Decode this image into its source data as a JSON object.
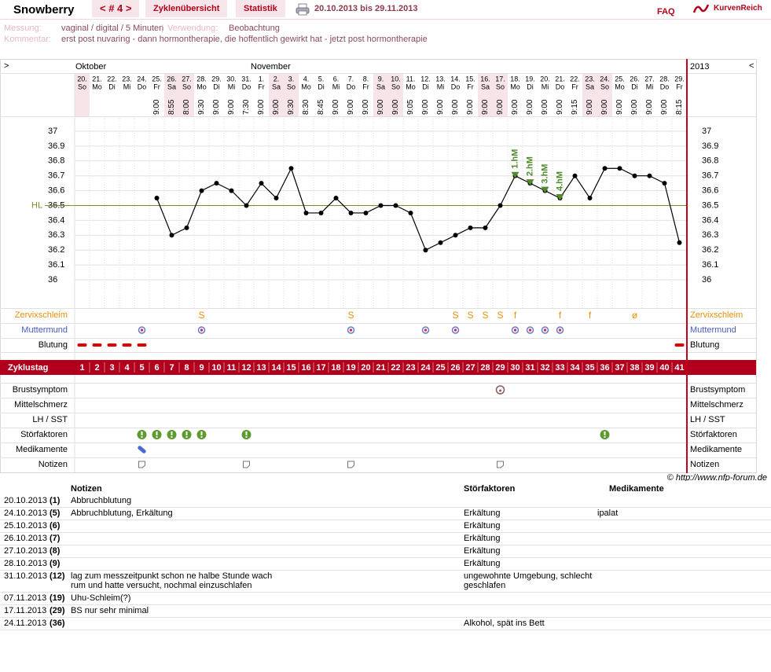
{
  "header": {
    "name": "Snowberry",
    "cycle_nav": "< # 4 >",
    "tabs": [
      "Zyklenübersicht",
      "Statistik"
    ],
    "date_range": "20.10.2013 bis 29.11.2013",
    "faq": "FAQ",
    "logo": "KurvenReich"
  },
  "info": {
    "measurement_label": "Messung:",
    "measurement": "vaginal / digital / 5 Minuten",
    "separator": "|",
    "usage_label": "Verwendung:",
    "usage": "Beobachtung",
    "comment_label": "Kommentar:",
    "comment": "erst post nuvaring - dann hormontherapie, die hoffentlich gewirkt hat - jetzt post hormontherapie"
  },
  "chart_data": {
    "type": "line",
    "nav_left": ">",
    "nav_right": "<",
    "months": [
      "Oktober",
      "November"
    ],
    "year": "2013",
    "categories": [
      "20.",
      "21.",
      "22.",
      "23.",
      "24.",
      "25.",
      "26.",
      "27.",
      "28.",
      "29.",
      "30.",
      "31.",
      "1.",
      "2.",
      "3.",
      "4.",
      "5.",
      "6.",
      "7.",
      "8.",
      "9.",
      "10.",
      "11.",
      "12.",
      "13.",
      "14.",
      "15.",
      "16.",
      "17.",
      "18.",
      "19.",
      "20.",
      "21.",
      "22.",
      "23.",
      "24.",
      "25.",
      "26.",
      "27.",
      "28.",
      "29."
    ],
    "weekdays": [
      "So",
      "Mo",
      "Di",
      "Mi",
      "Do",
      "Fr",
      "Sa",
      "So",
      "Mo",
      "Di",
      "Mi",
      "Do",
      "Fr",
      "Sa",
      "So",
      "Mo",
      "Di",
      "Mi",
      "Do",
      "Fr",
      "Sa",
      "So",
      "Mo",
      "Di",
      "Mi",
      "Do",
      "Fr",
      "Sa",
      "So",
      "Mo",
      "Di",
      "Mi",
      "Do",
      "Fr",
      "Sa",
      "So",
      "Mo",
      "Di",
      "Mi",
      "Do",
      "Fr"
    ],
    "weekend": [
      "Sa",
      "So"
    ],
    "times": [
      null,
      null,
      null,
      null,
      null,
      "9:00",
      "8:55",
      "8:00",
      "9:30",
      "9:00",
      "9:00",
      "7:30",
      "9:00",
      "9:00",
      "9:30",
      "8:30",
      "8:45",
      "9:00",
      "9:00",
      "9:00",
      "9:00",
      "9:00",
      "9:05",
      "9:00",
      "9:00",
      "9:00",
      "9:00",
      "9:00",
      "9:00",
      "9:00",
      "9:00",
      "9:00",
      "9:00",
      "9:15",
      "9:00",
      "9:00",
      "9:00",
      "9:00",
      "9:00",
      "9:00",
      "8:15"
    ],
    "values": [
      null,
      null,
      null,
      null,
      null,
      36.55,
      36.3,
      36.35,
      36.6,
      36.65,
      36.6,
      36.5,
      36.65,
      36.55,
      36.75,
      36.45,
      36.45,
      36.55,
      36.45,
      36.45,
      36.5,
      36.5,
      36.45,
      36.2,
      36.25,
      36.3,
      36.35,
      36.35,
      36.5,
      36.7,
      36.65,
      36.6,
      36.55,
      36.7,
      36.55,
      36.75,
      36.75,
      36.7,
      36.7,
      36.65,
      36.25
    ],
    "color": "#000000",
    "ylim": [
      35.8,
      37.1
    ],
    "yticks": [
      37,
      36.9,
      36.8,
      36.7,
      36.6,
      36.5,
      36.4,
      36.3,
      36.2,
      36.1,
      36
    ],
    "grid": true,
    "hl": {
      "label": "HL",
      "value": 36.5,
      "color": "#7a8f2a"
    },
    "hm_markers": {
      "labels": [
        "1.hM",
        "2.hM",
        "3.hM",
        "4.hM"
      ],
      "start_day": 30,
      "color": "#4f8a2c"
    }
  },
  "cycle_label": "Zyklustag",
  "cycle_days": [
    1,
    2,
    3,
    4,
    5,
    6,
    7,
    8,
    9,
    10,
    11,
    12,
    13,
    14,
    15,
    16,
    17,
    18,
    19,
    20,
    21,
    22,
    23,
    24,
    25,
    26,
    27,
    28,
    29,
    30,
    31,
    32,
    33,
    34,
    35,
    36,
    37,
    38,
    39,
    40,
    41
  ],
  "rows": {
    "cervical_mucus": {
      "label": "Zervixschleim",
      "color": "#e8900c",
      "values": [
        null,
        null,
        null,
        null,
        null,
        null,
        null,
        null,
        "S",
        null,
        null,
        null,
        null,
        null,
        null,
        null,
        null,
        null,
        "S",
        null,
        null,
        null,
        null,
        null,
        null,
        "S",
        "S",
        "S",
        "S",
        "f",
        null,
        null,
        "f",
        null,
        "f",
        null,
        null,
        "ø",
        null,
        null,
        null
      ]
    },
    "cervix": {
      "label": "Muttermund",
      "days": [
        5,
        9,
        19,
        24,
        26,
        30,
        31,
        32,
        33
      ]
    },
    "bleeding": {
      "label": "Blutung",
      "days": [
        1,
        2,
        3,
        4,
        5,
        41
      ]
    },
    "breast": {
      "label": "Brustsymptom",
      "days": [
        29
      ]
    },
    "pain": {
      "label": "Mittelschmerz",
      "days": []
    },
    "lh": {
      "label": "LH / SST",
      "days": []
    },
    "disturbances": {
      "label": "Störfaktoren",
      "days": [
        5,
        6,
        7,
        8,
        9,
        12,
        36
      ]
    },
    "medication": {
      "label": "Medikamente",
      "days": [
        5
      ]
    },
    "notes": {
      "label": "Notizen",
      "days": [
        5,
        12,
        19,
        29
      ]
    }
  },
  "copyright": "© http://www.nfp-forum.de",
  "table": {
    "headers": [
      "Notizen",
      "Störfaktoren",
      "Medikamente"
    ],
    "rows": [
      [
        "20.10.2013",
        "(1)",
        "Abbruchblutung",
        "",
        ""
      ],
      [
        "24.10.2013",
        "(5)",
        "Abbruchblutung, Erkältung",
        "Erkältung",
        "ipalat"
      ],
      [
        "25.10.2013",
        "(6)",
        "",
        "Erkältung",
        ""
      ],
      [
        "26.10.2013",
        "(7)",
        "",
        "Erkältung",
        ""
      ],
      [
        "27.10.2013",
        "(8)",
        "",
        "Erkältung",
        ""
      ],
      [
        "28.10.2013",
        "(9)",
        "",
        "Erkältung",
        ""
      ],
      [
        "31.10.2013",
        "(12)",
        "lag zum messzeitpunkt schon ne halbe Stunde wach rum und hatte versucht, nochmal einzuschlafen",
        "ungewohnte Umgebung, schlecht geschlafen",
        ""
      ],
      [
        "07.11.2013",
        "(19)",
        "Uhu-Schleim(?)",
        "",
        ""
      ],
      [
        "17.11.2013",
        "(29)",
        "BS nur sehr minimal",
        "",
        ""
      ],
      [
        "24.11.2013",
        "(36)",
        "",
        "Alkohol, spät ins Bett",
        ""
      ]
    ]
  }
}
